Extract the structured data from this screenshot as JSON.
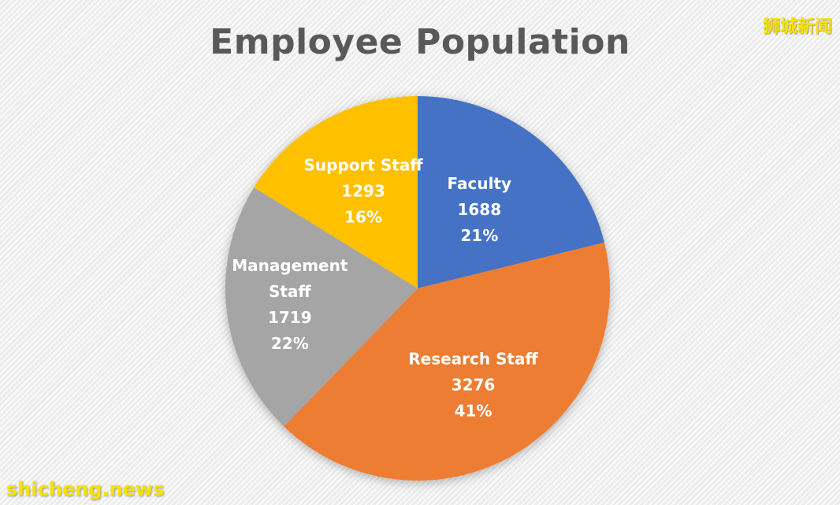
{
  "chart_data": {
    "type": "pie",
    "title": "Employee Population",
    "slices": [
      {
        "label": "Faculty",
        "label_lines": [
          "Faculty"
        ],
        "value": 1688,
        "value_label": "1688",
        "percent": 21,
        "percent_label": "21%",
        "color": "#4472C4"
      },
      {
        "label": "Research Staff",
        "label_lines": [
          "Research Staff"
        ],
        "value": 3276,
        "value_label": "3276",
        "percent": 41,
        "percent_label": "41%",
        "color": "#ED7D31"
      },
      {
        "label": "Management Staff",
        "label_lines": [
          "Management",
          "Staff"
        ],
        "value": 1719,
        "value_label": "1719",
        "percent": 22,
        "percent_label": "22%",
        "color": "#A5A5A5"
      },
      {
        "label": "Support Staff",
        "label_lines": [
          "Support Staff"
        ],
        "value": 1293,
        "value_label": "1293",
        "percent": 16,
        "percent_label": "16%",
        "color": "#FFC000"
      }
    ],
    "legend": "none",
    "label_color": "#FFFFFF"
  },
  "watermarks": {
    "top_right": "狮城新闻",
    "bottom_left": "shicheng.news"
  },
  "colors": {
    "title": "#595959"
  }
}
